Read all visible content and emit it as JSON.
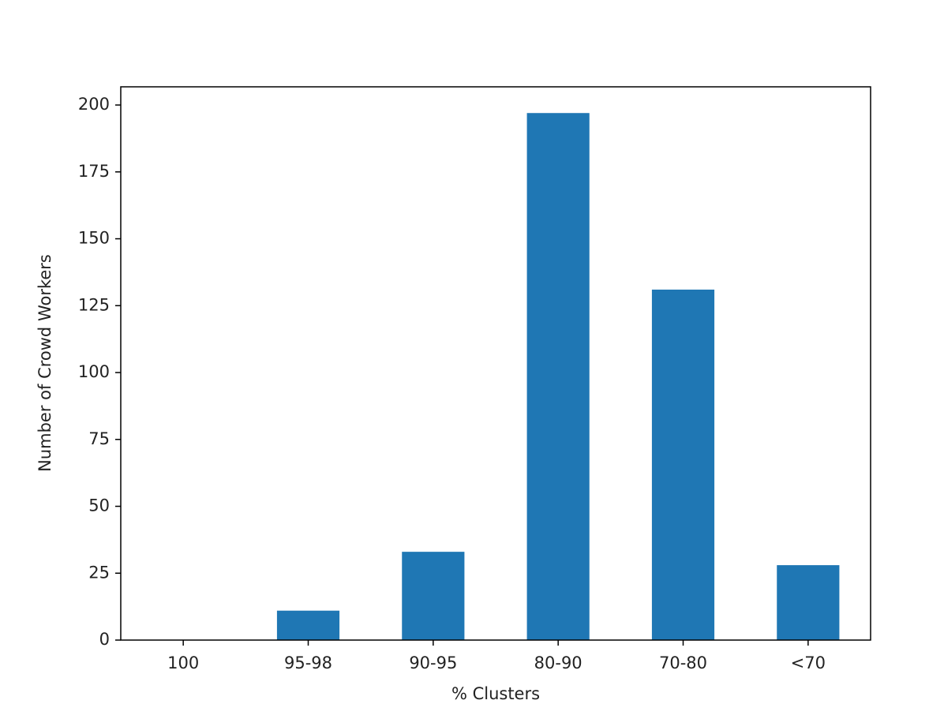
{
  "chart_data": {
    "type": "bar",
    "x_label": "% Clusters",
    "y_label": "Number of Crowd Workers",
    "categories": [
      "100",
      "95-98",
      "90-95",
      "80-90",
      "70-80",
      "<70"
    ],
    "values": [
      0,
      11,
      33,
      197,
      131,
      28
    ],
    "color": "#1f77b4",
    "ylim": [
      0,
      206.8
    ],
    "yticks": [
      0,
      25,
      50,
      75,
      100,
      125,
      150,
      175,
      200
    ],
    "grid": false
  }
}
